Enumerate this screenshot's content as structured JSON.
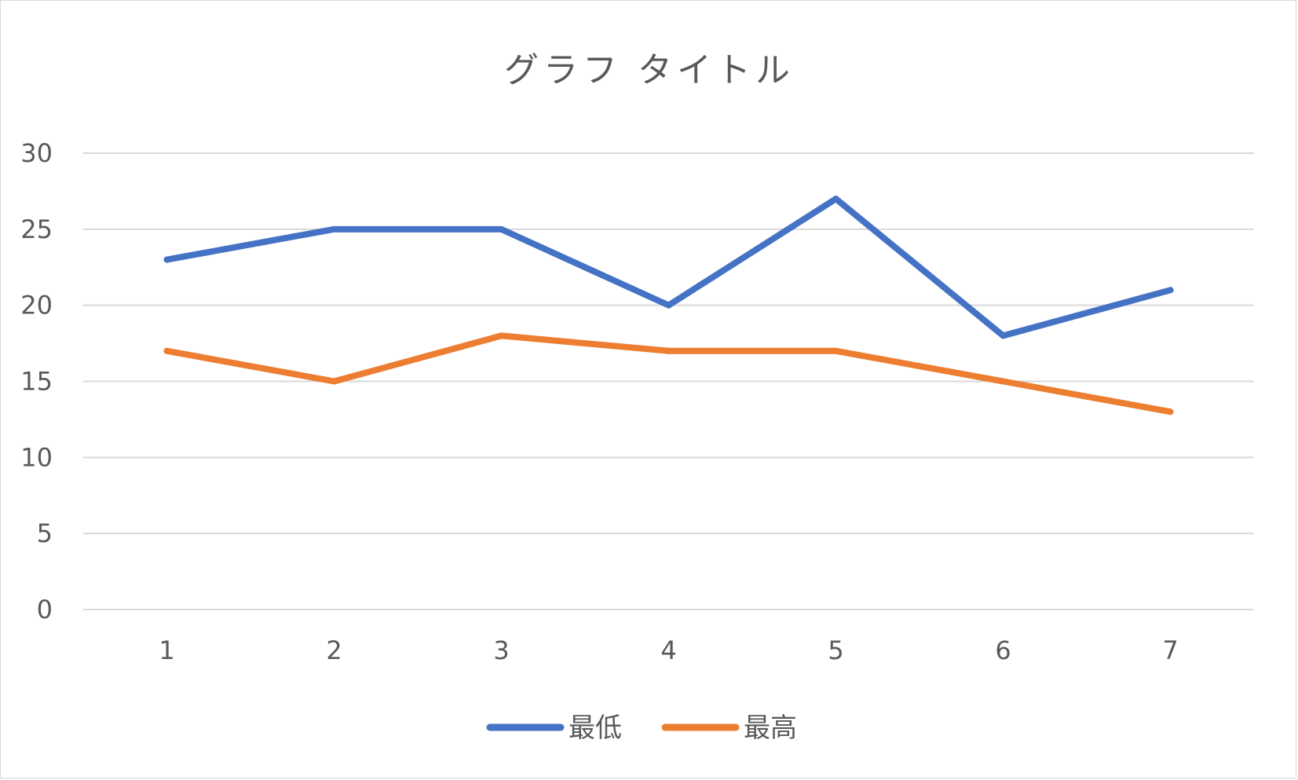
{
  "chart_data": {
    "type": "line",
    "title": "グラフ タイトル",
    "xlabel": "",
    "ylabel": "",
    "categories": [
      "1",
      "2",
      "3",
      "4",
      "5",
      "6",
      "7"
    ],
    "y_ticks": [
      "0",
      "5",
      "10",
      "15",
      "20",
      "25",
      "30"
    ],
    "ylim": [
      0,
      30
    ],
    "grid": "horizontal",
    "legend_position": "bottom",
    "series": [
      {
        "name": "最低",
        "color": "#4472c4",
        "values": [
          23,
          25,
          25,
          20,
          27,
          18,
          21
        ]
      },
      {
        "name": "最高",
        "color": "#ed7d31",
        "values": [
          17,
          15,
          18,
          17,
          17,
          15,
          13
        ]
      }
    ]
  }
}
